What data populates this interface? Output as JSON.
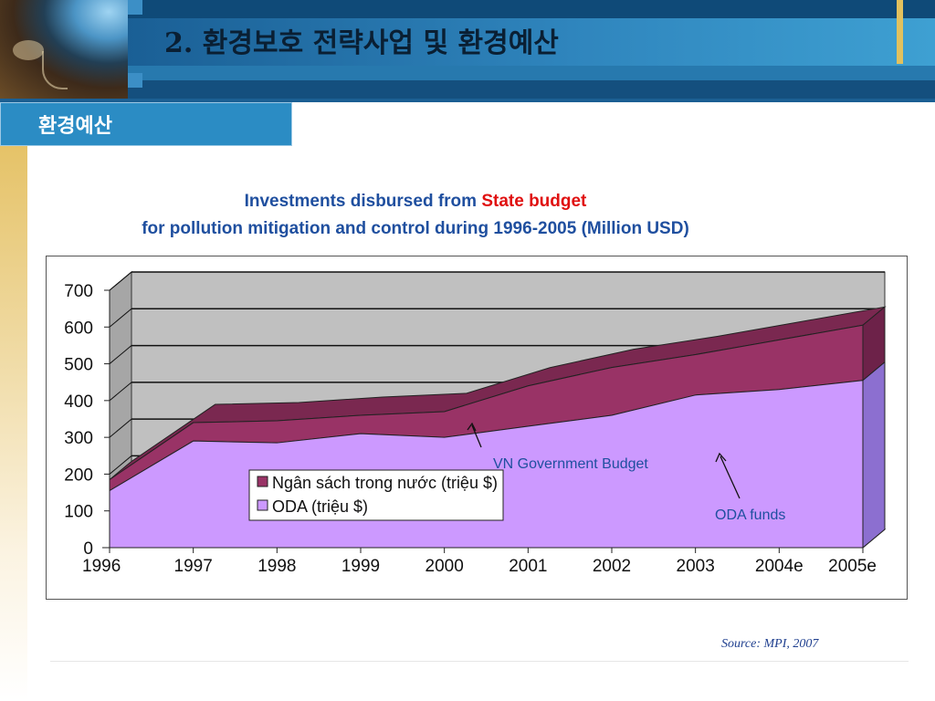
{
  "slide": {
    "title": "2. 환경보호 전략사업 및 환경예산",
    "section": "환경예산",
    "source": "Source: MPI, 2007"
  },
  "chart_data": {
    "type": "area",
    "title_line1_part1": "Investments disbursed from",
    "title_line1_highlight": "State budget",
    "title_line2": "for pollution mitigation and control during 1996-2005 (Million USD)",
    "stacked": true,
    "three_d": true,
    "categories": [
      "1996",
      "1997",
      "1998",
      "1999",
      "2000",
      "2001",
      "2002",
      "2003",
      "2004e",
      "2005e"
    ],
    "series": [
      {
        "name": "ODA (triệu $)",
        "values": [
          155,
          290,
          285,
          310,
          300,
          330,
          360,
          415,
          430,
          455
        ],
        "color": "#cc99ff"
      },
      {
        "name": "Ngân sách trong nước (triệu $)",
        "values": [
          30,
          50,
          60,
          50,
          70,
          110,
          130,
          110,
          135,
          150
        ],
        "color": "#993366"
      }
    ],
    "yticks": [
      0,
      100,
      200,
      300,
      400,
      500,
      600,
      700
    ],
    "ylim": [
      0,
      700
    ],
    "grid": true,
    "legend_position": "inside-center",
    "annotations": [
      "VN Government Budget",
      "ODA funds"
    ]
  }
}
